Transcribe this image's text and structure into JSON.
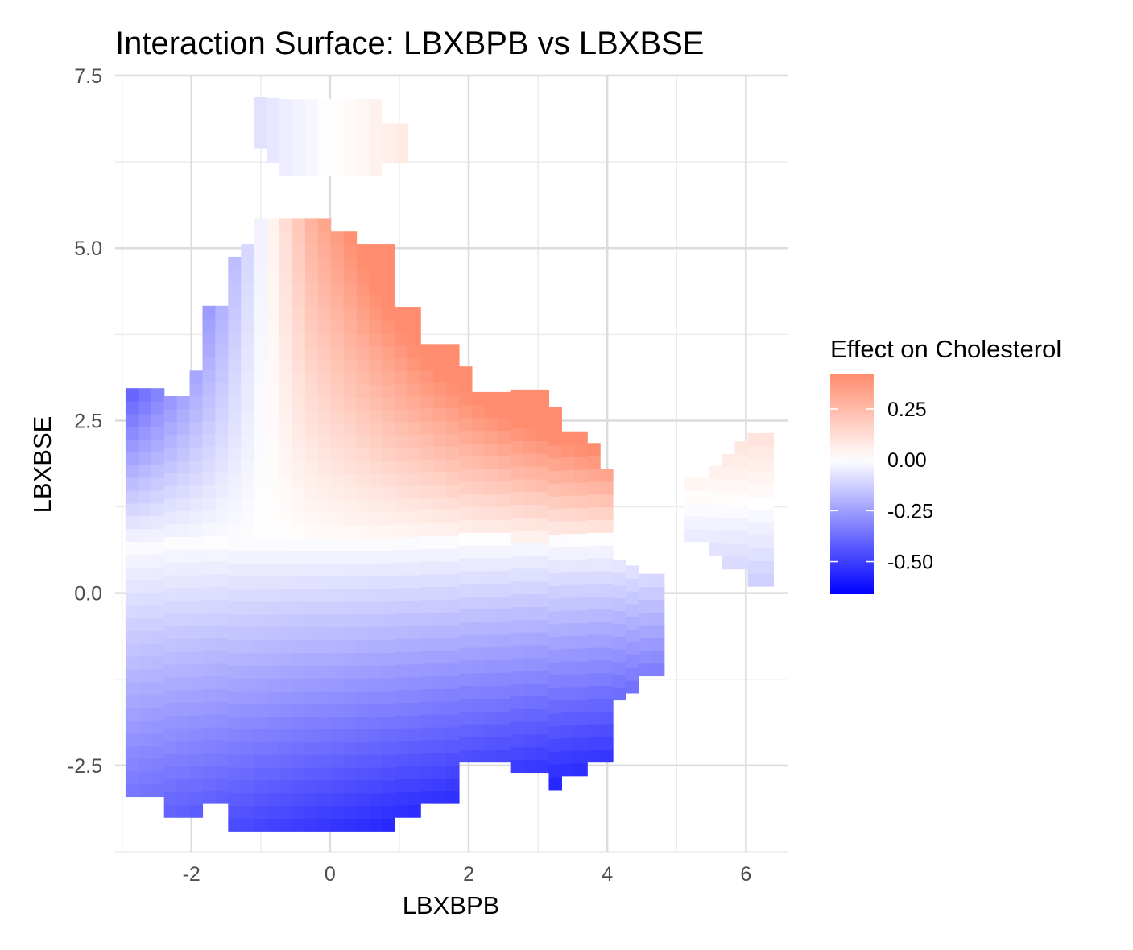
{
  "chart_data": {
    "type": "heatmap",
    "title": "Interaction Surface: LBXBPB vs LBXBSE",
    "xlabel": "LBXBPB",
    "ylabel": "LBXBSE",
    "xlim": [
      -3.1,
      6.6
    ],
    "ylim": [
      -3.75,
      7.5
    ],
    "x_ticks": [
      -2,
      0,
      2,
      4,
      6
    ],
    "x_tick_labels": [
      "-2",
      "0",
      "2",
      "4",
      "6"
    ],
    "y_ticks": [
      -2.5,
      0.0,
      2.5,
      5.0,
      7.5
    ],
    "y_tick_labels": [
      "-2.5",
      "0.0",
      "2.5",
      "5.0",
      "7.5"
    ],
    "grid": true,
    "legend": {
      "title": "Effect on Cholesterol",
      "position": "right",
      "ticks": [
        0.25,
        0.0,
        -0.25,
        -0.5
      ],
      "tick_labels": [
        "0.25",
        "0.00",
        "-0.25",
        "-0.50"
      ],
      "range": [
        -0.66,
        0.42
      ]
    },
    "colors": {
      "low": "#0000ff",
      "mid": "#ffffff",
      "high": "#ff8c6e"
    },
    "cell_size": {
      "dx": 0.185,
      "dy": 0.185
    },
    "regions": [
      {
        "name": "main",
        "profile": [
          [
            -2.95,
            -2.95,
            2.85
          ],
          [
            -2.4,
            -3.25,
            2.85
          ],
          [
            -2.2,
            -3.25,
            3.05
          ],
          [
            -2.0,
            -3.05,
            4.1
          ],
          [
            -1.65,
            -3.45,
            4.7
          ],
          [
            -1.3,
            -3.45,
            5.0
          ],
          [
            -1.1,
            -3.45,
            5.35
          ],
          [
            -0.5,
            -3.45,
            5.35
          ],
          [
            -0.2,
            -3.45,
            5.35
          ],
          [
            0.0,
            -3.45,
            5.1
          ],
          [
            0.3,
            -3.45,
            4.95
          ],
          [
            0.9,
            -3.25,
            4.1
          ],
          [
            1.3,
            -3.05,
            3.5
          ],
          [
            1.7,
            -2.45,
            3.25
          ],
          [
            2.0,
            -2.45,
            2.9
          ],
          [
            2.4,
            -2.45,
            2.85
          ],
          [
            2.6,
            -2.6,
            2.85
          ],
          [
            3.0,
            -2.85,
            2.6
          ],
          [
            3.3,
            -2.65,
            2.3
          ],
          [
            3.55,
            -2.45,
            2.0
          ],
          [
            3.8,
            -2.45,
            1.8
          ],
          [
            4.0,
            -1.55,
            0.45
          ],
          [
            4.2,
            -1.45,
            0.3
          ],
          [
            4.4,
            -1.2,
            0.1
          ],
          [
            4.55,
            -1.2,
            -0.1
          ]
        ],
        "field": {
          "a": -0.08,
          "b": 0.05,
          "c": 0.07
        }
      },
      {
        "name": "top-island",
        "profile": [
          [
            -1.1,
            6.45,
            7.05
          ],
          [
            -0.95,
            6.25,
            7.05
          ],
          [
            -0.75,
            6.05,
            7.05
          ],
          [
            0.0,
            6.05,
            7.05
          ],
          [
            0.35,
            6.05,
            7.05
          ],
          [
            0.7,
            6.25,
            6.7
          ],
          [
            0.9,
            6.7,
            7.05
          ]
        ],
        "field": {
          "a": -0.08,
          "b": 0.05,
          "c": 0.07
        }
      },
      {
        "name": "right-island",
        "profile": [
          [
            5.1,
            0.75,
            1.6
          ],
          [
            5.35,
            0.55,
            1.8
          ],
          [
            5.6,
            0.35,
            2.0
          ],
          [
            5.8,
            0.35,
            2.2
          ],
          [
            6.0,
            0.1,
            2.2
          ],
          [
            6.2,
            0.1,
            2.2
          ]
        ],
        "field": {
          "a": -0.11,
          "b": 0.0,
          "c": 0.0
        }
      }
    ]
  }
}
